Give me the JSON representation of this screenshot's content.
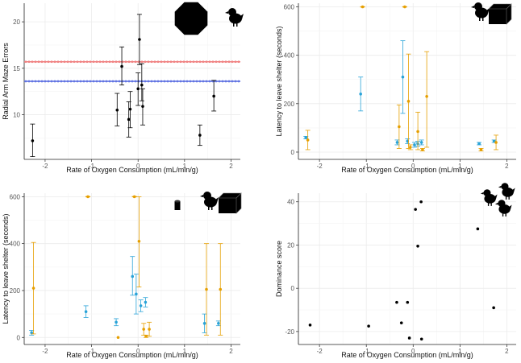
{
  "colors": {
    "black": "#000000",
    "blue": "#29a3d8",
    "orange": "#e69f00",
    "red_line": "#f08080",
    "blue_line": "#5b6ee1",
    "grid": "#ebebeb",
    "axis": "#222222"
  },
  "chart_data": [
    {
      "id": "A",
      "type": "scatter",
      "title": "",
      "xlabel": "Rate of Oxygen Consumption (mL/min/g)",
      "ylabel": "Radial Arm Maze Errors",
      "xlim": [
        -2.45,
        2.2
      ],
      "ylim": [
        5.2,
        22
      ],
      "xticks": [
        -2,
        -1,
        0,
        1,
        2
      ],
      "yticks": [
        5,
        10,
        15,
        20
      ],
      "icons": [
        "stop-octagon-icon",
        "chick-icon"
      ],
      "hlines": [
        {
          "y": 15.7,
          "color": "#f08080"
        },
        {
          "y": 13.6,
          "color": "#5b6ee1"
        }
      ],
      "series": [
        {
          "name": "errors",
          "color": "#000000",
          "points": [
            {
              "x": -2.27,
              "y": 7.2,
              "lo": 5.5,
              "hi": 9.0
            },
            {
              "x": -0.45,
              "y": 10.5,
              "lo": 8.8,
              "hi": 12.3
            },
            {
              "x": -0.35,
              "y": 15.2,
              "lo": 13.2,
              "hi": 17.3
            },
            {
              "x": -0.2,
              "y": 9.5,
              "lo": 7.6,
              "hi": 11.4
            },
            {
              "x": -0.17,
              "y": 10.6,
              "lo": 8.6,
              "hi": 12.5
            },
            {
              "x": 0.0,
              "y": 12.8,
              "lo": 11.0,
              "hi": 14.5
            },
            {
              "x": 0.03,
              "y": 18.1,
              "lo": 15.4,
              "hi": 20.8
            },
            {
              "x": 0.08,
              "y": 13.2,
              "lo": 11.5,
              "hi": 15.5
            },
            {
              "x": 0.1,
              "y": 10.9,
              "lo": 8.9,
              "hi": 12.8
            },
            {
              "x": 1.33,
              "y": 7.8,
              "lo": 6.7,
              "hi": 8.9
            },
            {
              "x": 1.63,
              "y": 12.0,
              "lo": 10.4,
              "hi": 13.7
            }
          ]
        }
      ]
    },
    {
      "id": "B",
      "type": "scatter",
      "title": "",
      "xlabel": "Rate of Oxygen Consumption (mL/min/g)",
      "ylabel": "Latency to leave shelter (seconds)",
      "xlim": [
        -2.45,
        2.2
      ],
      "ylim": [
        -30,
        615
      ],
      "xticks": [
        -2,
        -1,
        0,
        1,
        2
      ],
      "yticks": [
        0,
        200,
        400,
        600
      ],
      "icons": [
        "chick-icon",
        "box-icon"
      ],
      "series": [
        {
          "name": "blue",
          "color": "#29a3d8",
          "points": [
            {
              "x": -2.27,
              "y": 60,
              "lo": 55,
              "hi": 65
            },
            {
              "x": -1.1,
              "y": 240,
              "lo": 170,
              "hi": 310
            },
            {
              "x": -0.32,
              "y": 40,
              "lo": 30,
              "hi": 50
            },
            {
              "x": -0.2,
              "y": 310,
              "lo": 160,
              "hi": 460
            },
            {
              "x": -0.1,
              "y": 45,
              "lo": 35,
              "hi": 55
            },
            {
              "x": 0.05,
              "y": 30,
              "lo": 20,
              "hi": 40
            },
            {
              "x": 0.12,
              "y": 35,
              "lo": 25,
              "hi": 45
            },
            {
              "x": 0.2,
              "y": 40,
              "lo": 30,
              "hi": 50
            },
            {
              "x": 1.43,
              "y": 35,
              "lo": 30,
              "hi": 40
            },
            {
              "x": 1.75,
              "y": 45,
              "lo": 40,
              "hi": 50
            }
          ]
        },
        {
          "name": "orange",
          "color": "#e69f00",
          "points": [
            {
              "x": -2.27,
              "y": 50,
              "lo": 10,
              "hi": 90
            },
            {
              "x": -1.1,
              "y": 600,
              "lo": 600,
              "hi": 600
            },
            {
              "x": -0.32,
              "y": 105,
              "lo": 15,
              "hi": 195
            },
            {
              "x": -0.2,
              "y": 600,
              "lo": 600,
              "hi": 600
            },
            {
              "x": -0.12,
              "y": 210,
              "lo": 15,
              "hi": 405
            },
            {
              "x": -0.08,
              "y": 20,
              "lo": 10,
              "hi": 30
            },
            {
              "x": 0.08,
              "y": 85,
              "lo": 10,
              "hi": 165
            },
            {
              "x": 0.18,
              "y": 10,
              "lo": 5,
              "hi": 15
            },
            {
              "x": 0.27,
              "y": 230,
              "lo": 20,
              "hi": 415
            },
            {
              "x": 1.43,
              "y": 10,
              "lo": 5,
              "hi": 15
            },
            {
              "x": 1.75,
              "y": 40,
              "lo": 10,
              "hi": 70
            }
          ]
        }
      ]
    },
    {
      "id": "C",
      "type": "scatter",
      "title": "",
      "xlabel": "Rate of Oxygen Consumption (mL/min/g)",
      "ylabel": "Latency to leave shelter (seconds)",
      "xlim": [
        -2.45,
        2.2
      ],
      "ylim": [
        -30,
        615
      ],
      "xticks": [
        -2,
        -1,
        0,
        1,
        2
      ],
      "yticks": [
        0,
        200,
        400,
        600
      ],
      "icons": [
        "cylinder-icon",
        "chick-icon",
        "box-icon"
      ],
      "series": [
        {
          "name": "blue",
          "color": "#29a3d8",
          "points": [
            {
              "x": -2.27,
              "y": 20,
              "lo": 10,
              "hi": 30
            },
            {
              "x": -1.1,
              "y": 110,
              "lo": 85,
              "hi": 135
            },
            {
              "x": -0.45,
              "y": 65,
              "lo": 50,
              "hi": 80
            },
            {
              "x": -0.1,
              "y": 260,
              "lo": 180,
              "hi": 345
            },
            {
              "x": -0.02,
              "y": 185,
              "lo": 100,
              "hi": 270
            },
            {
              "x": 0.08,
              "y": 135,
              "lo": 110,
              "hi": 160
            },
            {
              "x": 0.18,
              "y": 150,
              "lo": 130,
              "hi": 170
            },
            {
              "x": 1.45,
              "y": 60,
              "lo": 20,
              "hi": 100
            },
            {
              "x": 1.75,
              "y": 60,
              "lo": 50,
              "hi": 70
            }
          ]
        },
        {
          "name": "orange",
          "color": "#e69f00",
          "points": [
            {
              "x": -2.27,
              "y": 210,
              "lo": 15,
              "hi": 405
            },
            {
              "x": -1.1,
              "y": 600,
              "lo": 600,
              "hi": 600
            },
            {
              "x": -0.45,
              "y": 0,
              "lo": 0,
              "hi": 0
            },
            {
              "x": -0.1,
              "y": 600,
              "lo": 600,
              "hi": 600
            },
            {
              "x": 0.0,
              "y": 410,
              "lo": 215,
              "hi": 600
            },
            {
              "x": 0.1,
              "y": 35,
              "lo": 10,
              "hi": 60
            },
            {
              "x": 0.15,
              "y": 5,
              "lo": 0,
              "hi": 10
            },
            {
              "x": 0.22,
              "y": 35,
              "lo": 5,
              "hi": 65
            },
            {
              "x": 1.45,
              "y": 205,
              "lo": 10,
              "hi": 400
            },
            {
              "x": 1.75,
              "y": 205,
              "lo": 10,
              "hi": 400
            }
          ]
        }
      ]
    },
    {
      "id": "D",
      "type": "scatter",
      "title": "",
      "xlabel": "Rate of Oxygen Consumption (mL/min/g)",
      "ylabel": "Dominance score",
      "xlim": [
        -2.45,
        2.2
      ],
      "ylim": [
        -26,
        44
      ],
      "xticks": [
        -2,
        -1,
        0,
        1,
        2
      ],
      "yticks": [
        -20,
        0,
        20,
        40
      ],
      "icons": [
        "chick-icon",
        "chick-icon",
        "chick-icon"
      ],
      "series": [
        {
          "name": "score",
          "color": "#000000",
          "points": [
            {
              "x": -2.2,
              "y": -17
            },
            {
              "x": -0.95,
              "y": -17.5
            },
            {
              "x": -0.35,
              "y": -6.5
            },
            {
              "x": -0.25,
              "y": -16
            },
            {
              "x": -0.12,
              "y": -6.5
            },
            {
              "x": -0.08,
              "y": -23
            },
            {
              "x": 0.05,
              "y": 36.5
            },
            {
              "x": 0.1,
              "y": 19.5
            },
            {
              "x": 0.17,
              "y": 40
            },
            {
              "x": 0.18,
              "y": -23.5
            },
            {
              "x": 1.38,
              "y": 27.5
            },
            {
              "x": 1.72,
              "y": -9
            }
          ]
        }
      ]
    }
  ]
}
